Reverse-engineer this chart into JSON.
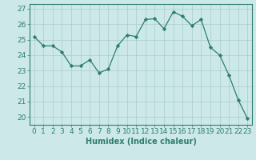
{
  "x": [
    0,
    1,
    2,
    3,
    4,
    5,
    6,
    7,
    8,
    9,
    10,
    11,
    12,
    13,
    14,
    15,
    16,
    17,
    18,
    19,
    20,
    21,
    22,
    23
  ],
  "y": [
    25.2,
    24.6,
    24.6,
    24.2,
    23.3,
    23.3,
    23.7,
    22.85,
    23.1,
    24.6,
    25.3,
    25.2,
    26.3,
    26.35,
    25.7,
    26.8,
    26.5,
    25.9,
    26.3,
    24.5,
    24.0,
    22.7,
    21.1,
    19.9
  ],
  "line_color": "#2e7d6e",
  "marker": "D",
  "marker_size": 2.2,
  "bg_color": "#cce8e8",
  "grid_color": "#aacccc",
  "xlabel": "Humidex (Indice chaleur)",
  "ylim": [
    19.5,
    27.3
  ],
  "yticks": [
    20,
    21,
    22,
    23,
    24,
    25,
    26,
    27
  ],
  "xticks": [
    0,
    1,
    2,
    3,
    4,
    5,
    6,
    7,
    8,
    9,
    10,
    11,
    12,
    13,
    14,
    15,
    16,
    17,
    18,
    19,
    20,
    21,
    22,
    23
  ],
  "axis_fontsize": 6.5,
  "label_fontsize": 7.0
}
